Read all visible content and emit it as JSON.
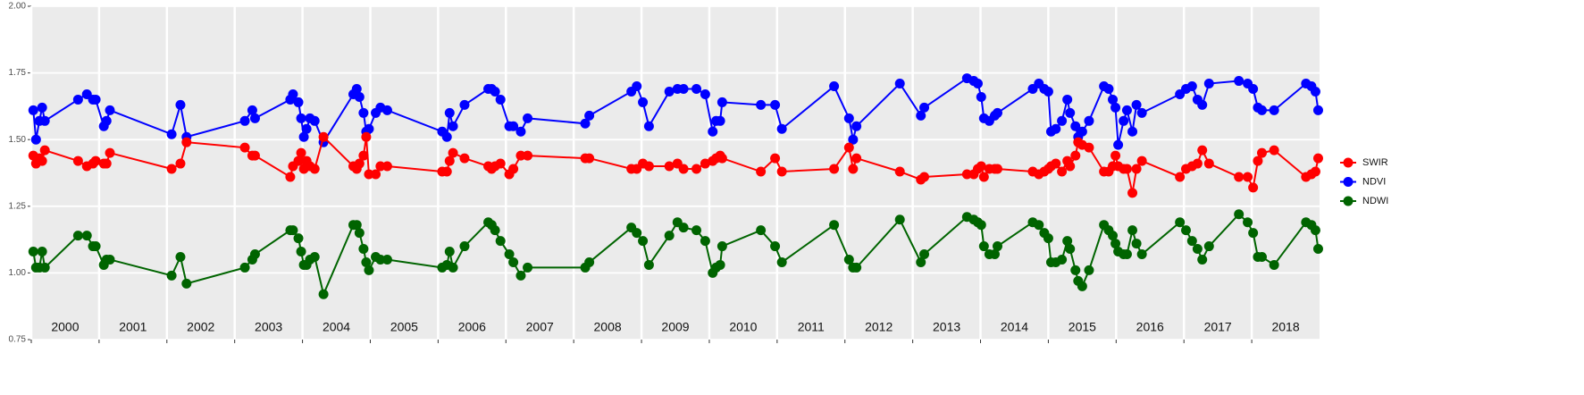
{
  "chart_data": {
    "type": "line",
    "x": [
      2000.03,
      2000.07,
      2000.12,
      2000.16,
      2000.2,
      2000.69,
      2000.82,
      2000.91,
      2000.95,
      2001.07,
      2001.11,
      2001.16,
      2002.07,
      2002.2,
      2002.29,
      2003.15,
      2003.26,
      2003.3,
      2003.82,
      2003.86,
      2003.94,
      2003.98,
      2004.02,
      2004.06,
      2004.11,
      2004.18,
      2004.31,
      2004.75,
      2004.8,
      2004.84,
      2004.9,
      2004.94,
      2004.98,
      2005.08,
      2005.15,
      2005.25,
      2006.06,
      2006.13,
      2006.17,
      2006.22,
      2006.39,
      2006.74,
      2006.79,
      2006.84,
      2006.92,
      2007.05,
      2007.11,
      2007.22,
      2007.32,
      2008.17,
      2008.23,
      2008.85,
      2008.93,
      2009.02,
      2009.11,
      2009.41,
      2009.53,
      2009.62,
      2009.81,
      2009.94,
      2010.05,
      2010.1,
      2010.16,
      2010.19,
      2010.76,
      2010.97,
      2011.07,
      2011.84,
      2012.06,
      2012.12,
      2012.17,
      2012.81,
      2013.12,
      2013.17,
      2013.8,
      2013.9,
      2013.96,
      2014.01,
      2014.05,
      2014.13,
      2014.21,
      2014.25,
      2014.77,
      2014.86,
      2014.94,
      2015,
      2015.04,
      2015.11,
      2015.2,
      2015.28,
      2015.32,
      2015.4,
      2015.44,
      2015.5,
      2015.6,
      2015.82,
      2015.89,
      2015.95,
      2015.99,
      2016.03,
      2016.11,
      2016.16,
      2016.24,
      2016.3,
      2016.38,
      2016.94,
      2017.03,
      2017.12,
      2017.2,
      2017.27,
      2017.37,
      2017.81,
      2017.94,
      2018.02,
      2018.09,
      2018.15,
      2018.33,
      2018.8,
      2018.88,
      2018.94,
      2018.98
    ],
    "series": [
      {
        "name": "SWIR",
        "color": "#ff0000",
        "values": [
          1.44,
          1.41,
          1.43,
          1.42,
          1.46,
          1.42,
          1.4,
          1.41,
          1.42,
          1.41,
          1.41,
          1.45,
          1.39,
          1.41,
          1.49,
          1.47,
          1.44,
          1.44,
          1.36,
          1.4,
          1.42,
          1.45,
          1.39,
          1.42,
          1.4,
          1.39,
          1.51,
          1.4,
          1.39,
          1.41,
          1.44,
          1.51,
          1.37,
          1.37,
          1.4,
          1.4,
          1.38,
          1.38,
          1.42,
          1.45,
          1.43,
          1.4,
          1.39,
          1.4,
          1.41,
          1.37,
          1.39,
          1.44,
          1.44,
          1.43,
          1.43,
          1.39,
          1.39,
          1.41,
          1.4,
          1.4,
          1.41,
          1.39,
          1.39,
          1.41,
          1.42,
          1.43,
          1.44,
          1.43,
          1.38,
          1.43,
          1.38,
          1.39,
          1.47,
          1.39,
          1.43,
          1.38,
          1.35,
          1.36,
          1.37,
          1.37,
          1.39,
          1.4,
          1.36,
          1.39,
          1.39,
          1.39,
          1.38,
          1.37,
          1.38,
          1.39,
          1.4,
          1.41,
          1.38,
          1.42,
          1.4,
          1.44,
          1.49,
          1.48,
          1.47,
          1.38,
          1.38,
          1.4,
          1.44,
          1.4,
          1.39,
          1.39,
          1.3,
          1.39,
          1.42,
          1.36,
          1.39,
          1.4,
          1.41,
          1.46,
          1.41,
          1.36,
          1.36,
          1.32,
          1.42,
          1.45,
          1.46,
          1.36,
          1.37,
          1.38,
          1.43
        ]
      },
      {
        "name": "NDVI",
        "color": "#0000ff",
        "values": [
          1.61,
          1.5,
          1.57,
          1.62,
          1.57,
          1.65,
          1.67,
          1.65,
          1.65,
          1.55,
          1.57,
          1.61,
          1.52,
          1.63,
          1.51,
          1.57,
          1.61,
          1.58,
          1.65,
          1.67,
          1.64,
          1.58,
          1.51,
          1.54,
          1.58,
          1.57,
          1.49,
          1.67,
          1.69,
          1.66,
          1.6,
          1.53,
          1.54,
          1.6,
          1.62,
          1.61,
          1.53,
          1.51,
          1.6,
          1.55,
          1.63,
          1.69,
          1.69,
          1.68,
          1.65,
          1.55,
          1.55,
          1.53,
          1.58,
          1.56,
          1.59,
          1.68,
          1.7,
          1.64,
          1.55,
          1.68,
          1.69,
          1.69,
          1.69,
          1.67,
          1.53,
          1.57,
          1.57,
          1.64,
          1.63,
          1.63,
          1.54,
          1.7,
          1.58,
          1.5,
          1.55,
          1.71,
          1.59,
          1.62,
          1.73,
          1.72,
          1.71,
          1.66,
          1.58,
          1.57,
          1.59,
          1.6,
          1.69,
          1.71,
          1.69,
          1.68,
          1.53,
          1.54,
          1.57,
          1.65,
          1.6,
          1.55,
          1.51,
          1.53,
          1.57,
          1.7,
          1.69,
          1.65,
          1.62,
          1.48,
          1.57,
          1.61,
          1.53,
          1.63,
          1.6,
          1.67,
          1.69,
          1.7,
          1.65,
          1.63,
          1.71,
          1.72,
          1.71,
          1.69,
          1.62,
          1.61,
          1.61,
          1.71,
          1.7,
          1.68,
          1.61
        ]
      },
      {
        "name": "NDWI",
        "color": "#006400",
        "values": [
          1.08,
          1.02,
          1.02,
          1.08,
          1.02,
          1.14,
          1.14,
          1.1,
          1.1,
          1.03,
          1.05,
          1.05,
          0.99,
          1.06,
          0.96,
          1.02,
          1.05,
          1.07,
          1.16,
          1.16,
          1.13,
          1.08,
          1.03,
          1.03,
          1.05,
          1.06,
          0.92,
          1.18,
          1.18,
          1.15,
          1.09,
          1.04,
          1.01,
          1.06,
          1.05,
          1.05,
          1.02,
          1.03,
          1.08,
          1.02,
          1.1,
          1.19,
          1.18,
          1.16,
          1.12,
          1.07,
          1.04,
          0.99,
          1.02,
          1.02,
          1.04,
          1.17,
          1.15,
          1.12,
          1.03,
          1.14,
          1.19,
          1.17,
          1.16,
          1.12,
          1.0,
          1.02,
          1.03,
          1.1,
          1.16,
          1.1,
          1.04,
          1.18,
          1.05,
          1.02,
          1.02,
          1.2,
          1.04,
          1.07,
          1.21,
          1.2,
          1.19,
          1.18,
          1.1,
          1.07,
          1.07,
          1.1,
          1.19,
          1.18,
          1.15,
          1.13,
          1.04,
          1.04,
          1.05,
          1.12,
          1.09,
          1.01,
          0.97,
          0.95,
          1.01,
          1.18,
          1.16,
          1.14,
          1.11,
          1.08,
          1.07,
          1.07,
          1.16,
          1.11,
          1.07,
          1.19,
          1.16,
          1.12,
          1.09,
          1.05,
          1.1,
          1.22,
          1.19,
          1.15,
          1.06,
          1.06,
          1.03,
          1.19,
          1.18,
          1.16,
          1.09
        ]
      }
    ],
    "xlim": [
      2000,
      2019
    ],
    "xticks": [
      2000,
      2001,
      2002,
      2003,
      2004,
      2005,
      2006,
      2007,
      2008,
      2009,
      2010,
      2011,
      2012,
      2013,
      2014,
      2015,
      2016,
      2017,
      2018
    ],
    "ylim": [
      0.75,
      2.0
    ],
    "yticks": [
      {
        "value": 0.75,
        "label": "0.75"
      },
      {
        "value": 1.0,
        "label": "1.00"
      },
      {
        "value": 1.25,
        "label": "1.25"
      },
      {
        "value": 1.5,
        "label": "1.50"
      },
      {
        "value": 1.75,
        "label": "1.75"
      },
      {
        "value": 2.0,
        "label": "2.00"
      }
    ],
    "grid": true,
    "legend": "right"
  }
}
